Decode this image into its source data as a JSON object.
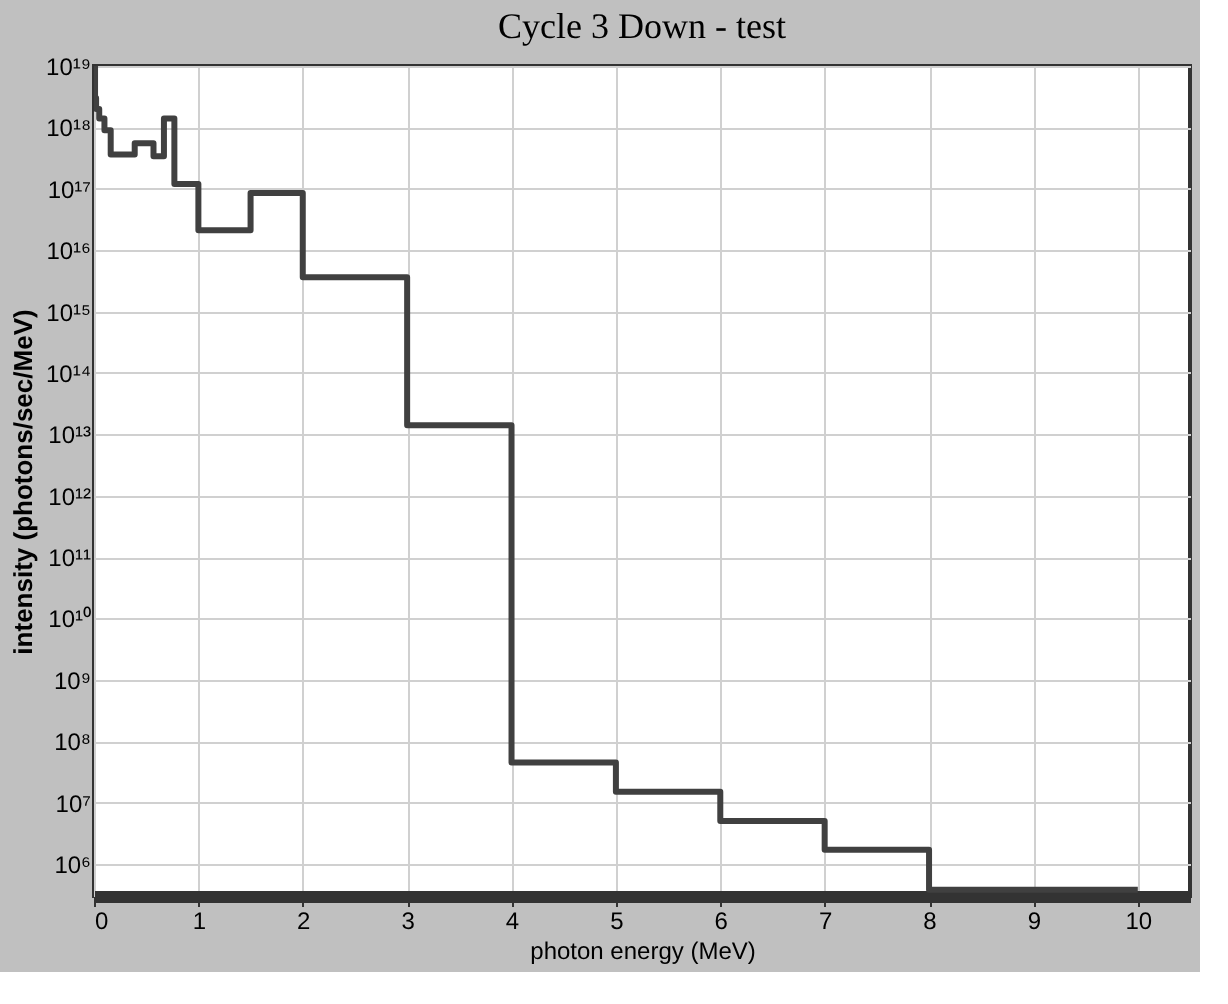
{
  "chart_data": {
    "type": "step",
    "title": "Cycle 3 Down - test",
    "xlabel": "photon energy (MeV)",
    "ylabel": "intensity (photons/sec/MeV)",
    "log": "y",
    "grid": true,
    "x": [
      0,
      0.01,
      0.02,
      0.05,
      0.1,
      0.16,
      0.39,
      0.57,
      0.67,
      0.77,
      1,
      1.5,
      2,
      3,
      4,
      5,
      6,
      7,
      8,
      10
    ],
    "series": [
      {
        "color": "#404040",
        "values": [
          1e+19,
          3e+18,
          2e+18,
          1.4e+18,
          9e+17,
          3.6e+17,
          5.5e+17,
          3.4e+17,
          1.4e+18,
          1.2e+17,
          2.1e+16,
          8.5e+16,
          3600000000000000.0,
          14000000000000.0,
          45000000.0,
          15000000.0,
          5000000.0,
          1700000.0,
          380000.0,
          380000.0
        ]
      }
    ],
    "xlim": [
      0,
      10.5
    ],
    "xticks": [
      0,
      1,
      2,
      3,
      4,
      5,
      6,
      7,
      8,
      9,
      10
    ],
    "ylim": [
      300000.0,
      1e+19
    ],
    "yticks": [
      {
        "value": 1000000.0,
        "label": "10⁶"
      },
      {
        "value": 10000000.0,
        "label": "10⁷"
      },
      {
        "value": 100000000.0,
        "label": "10⁸"
      },
      {
        "value": 1000000000.0,
        "label": "10⁹"
      },
      {
        "value": 10000000000.0,
        "label": "10¹⁰"
      },
      {
        "value": 100000000000.0,
        "label": "10¹¹"
      },
      {
        "value": 1000000000000.0,
        "label": "10¹²"
      },
      {
        "value": 10000000000000.0,
        "label": "10¹³"
      },
      {
        "value": 100000000000000.0,
        "label": "10¹⁴"
      },
      {
        "value": 1000000000000000.0,
        "label": "10¹⁵"
      },
      {
        "value": 1e+16,
        "label": "10¹⁶"
      },
      {
        "value": 1e+17,
        "label": "10¹⁷"
      },
      {
        "value": 1e+18,
        "label": "10¹⁸"
      },
      {
        "value": 1e+19,
        "label": "10¹⁹"
      }
    ]
  }
}
